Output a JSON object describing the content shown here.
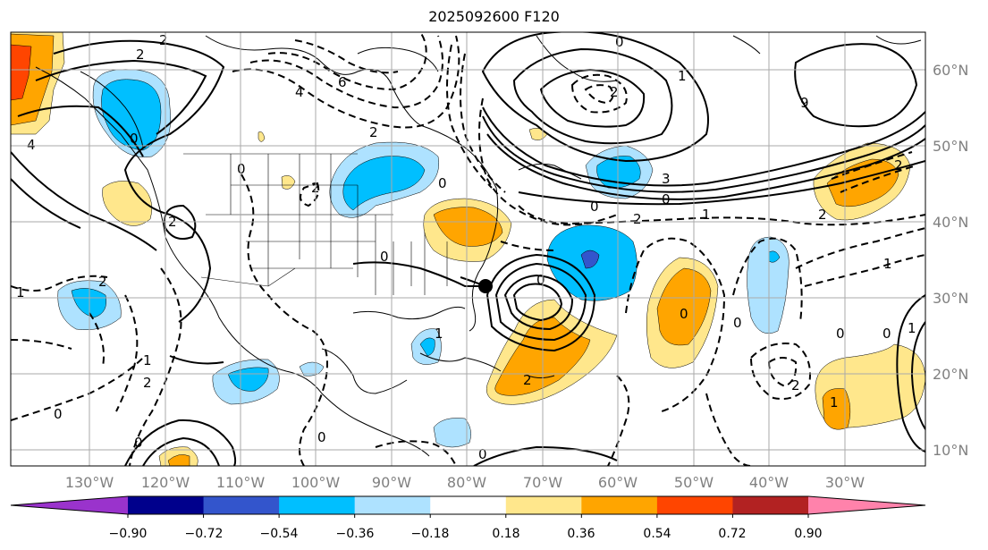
{
  "title": "2025092600 F120",
  "lon_labels": [
    "130°W",
    "120°W",
    "110°W",
    "100°W",
    "90°W",
    "80°W",
    "70°W",
    "60°W",
    "50°W",
    "40°W",
    "30°W"
  ],
  "lat_labels": [
    "60°N",
    "50°N",
    "40°N",
    "30°N",
    "20°N",
    "10°N"
  ],
  "colorbar": {
    "tick_labels": [
      "−0.90",
      "−0.72",
      "−0.54",
      "−0.36",
      "−0.18",
      "0.18",
      "0.36",
      "0.54",
      "0.72",
      "0.90"
    ],
    "colors": [
      "#9a33cc",
      "#00008c",
      "#3355cc",
      "#00bfff",
      "#aee2ff",
      "#ffffff",
      "#ffe78c",
      "#ffa500",
      "#ff4500",
      "#b22222",
      "#ff82ab"
    ]
  },
  "colors": {
    "contour": "#000000",
    "grid": "#aaaaaa",
    "axis_labels": "#808080"
  },
  "contour_labels": [
    "2",
    "2",
    "4",
    "0",
    "2",
    "0",
    "6",
    "4",
    "2",
    "0",
    "2",
    "0",
    "9",
    "1",
    "3",
    "0",
    "0",
    "2",
    "1",
    "2",
    "0",
    "1",
    "2",
    "0",
    "0",
    "2",
    "0",
    "1",
    "0",
    "1",
    "2",
    "0",
    "2",
    "0",
    "0",
    "1",
    "2",
    "0",
    "1",
    "0",
    "1",
    "2"
  ]
}
